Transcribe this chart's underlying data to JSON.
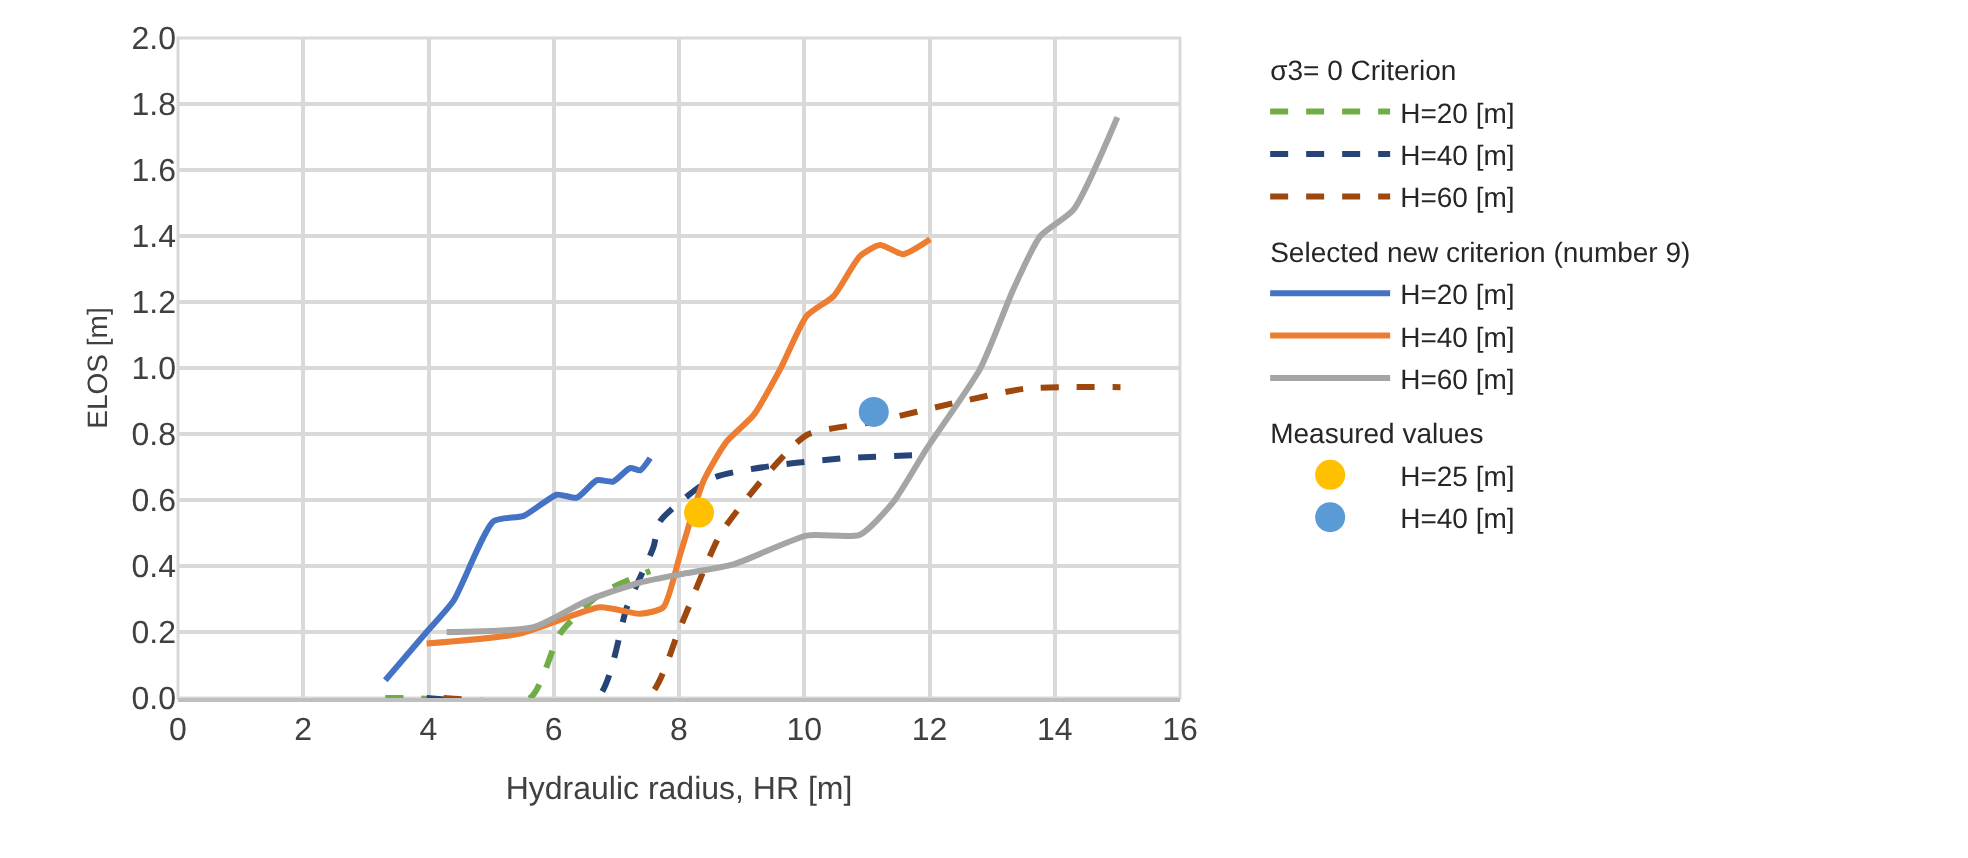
{
  "chart_data": {
    "type": "line",
    "xlabel": "Hydraulic radius, HR [m]",
    "ylabel": "ELOS [m]",
    "xlim": [
      0,
      16
    ],
    "xticks": [
      0,
      2,
      4,
      6,
      8,
      10,
      12,
      14,
      16
    ],
    "ylim": [
      0,
      2
    ],
    "yticks": [
      {
        "value": 0,
        "label": "0.0"
      },
      0.2,
      0.4,
      0.6,
      0.8,
      {
        "value": 1,
        "label": "1.0"
      },
      1.2,
      1.4,
      1.6,
      1.8,
      {
        "value": 2,
        "label": "2.0"
      }
    ],
    "grid": true,
    "legend": "right",
    "annotations": [
      "σ3= 0 Criterion",
      "Selected new criterion (number 9)",
      "Measured values"
    ],
    "series": [
      {
        "name": "H=20 [m]",
        "color": "#70ad47",
        "line_style": "dashed",
        "x": [
          3.31,
          3.71,
          5.62,
          6.1,
          6.74,
          7.54
        ],
        "values": [
          0,
          0,
          0,
          0.195,
          0.315,
          0.385
        ]
      },
      {
        "name": "H=40 [m]",
        "color": "#264478",
        "line_style": "dashed",
        "x": [
          3.97,
          6.69,
          7.17,
          7.59,
          7.7,
          8.55,
          9.62,
          10.68,
          11.9
        ],
        "values": [
          0,
          0,
          0.276,
          0.456,
          0.536,
          0.667,
          0.707,
          0.727,
          0.737
        ]
      },
      {
        "name": "H=60 [m]",
        "color": "#9e480e",
        "line_style": "dashed",
        "x": [
          4.24,
          7.49,
          8.02,
          8.66,
          9.4,
          10.04,
          11.11,
          12.49,
          13.55,
          15.05
        ],
        "values": [
          0,
          0,
          0.215,
          0.496,
          0.677,
          0.797,
          0.837,
          0.898,
          0.938,
          0.942
        ]
      },
      {
        "name": "H=20 [m]",
        "color": "#4472c4",
        "line_style": "solid",
        "x": [
          3.31,
          3.97,
          4.4,
          5.04,
          5.52,
          6.05,
          6.37,
          6.69,
          6.95,
          7.22,
          7.38,
          7.54
        ],
        "values": [
          0.054,
          0.2,
          0.295,
          0.536,
          0.552,
          0.616,
          0.607,
          0.66,
          0.656,
          0.697,
          0.69,
          0.727
        ]
      },
      {
        "name": "H=40 [m]",
        "color": "#ed7d31",
        "line_style": "solid",
        "x": [
          3.97,
          5.46,
          6.74,
          7.38,
          7.75,
          8.02,
          8.39,
          8.76,
          9.19,
          9.62,
          10.04,
          10.47,
          10.89,
          11.21,
          11.58,
          12.01
        ],
        "values": [
          0.165,
          0.195,
          0.275,
          0.255,
          0.275,
          0.436,
          0.657,
          0.777,
          0.857,
          0.998,
          1.158,
          1.218,
          1.339,
          1.373,
          1.345,
          1.39
        ]
      },
      {
        "name": "H=60 [m]",
        "color": "#a5a5a5",
        "line_style": "solid",
        "x": [
          4.29,
          5.68,
          6.53,
          7.38,
          8.02,
          8.87,
          10.04,
          10.89,
          11.43,
          11.96,
          12.81,
          13.34,
          13.77,
          14.3,
          15.0
        ],
        "values": [
          0.2,
          0.215,
          0.295,
          0.35,
          0.375,
          0.405,
          0.492,
          0.495,
          0.596,
          0.757,
          0.998,
          1.239,
          1.4,
          1.48,
          1.76
        ]
      },
      {
        "name": "H=25 [m]",
        "color": "#ffc000",
        "type": "scatter",
        "marker": "circle",
        "x": [
          8.32
        ],
        "values": [
          0.562
        ]
      },
      {
        "name": "H=40 [m]",
        "color": "#5b9bd5",
        "type": "scatter",
        "marker": "circle",
        "x": [
          11.11
        ],
        "values": [
          0.867
        ]
      }
    ]
  }
}
